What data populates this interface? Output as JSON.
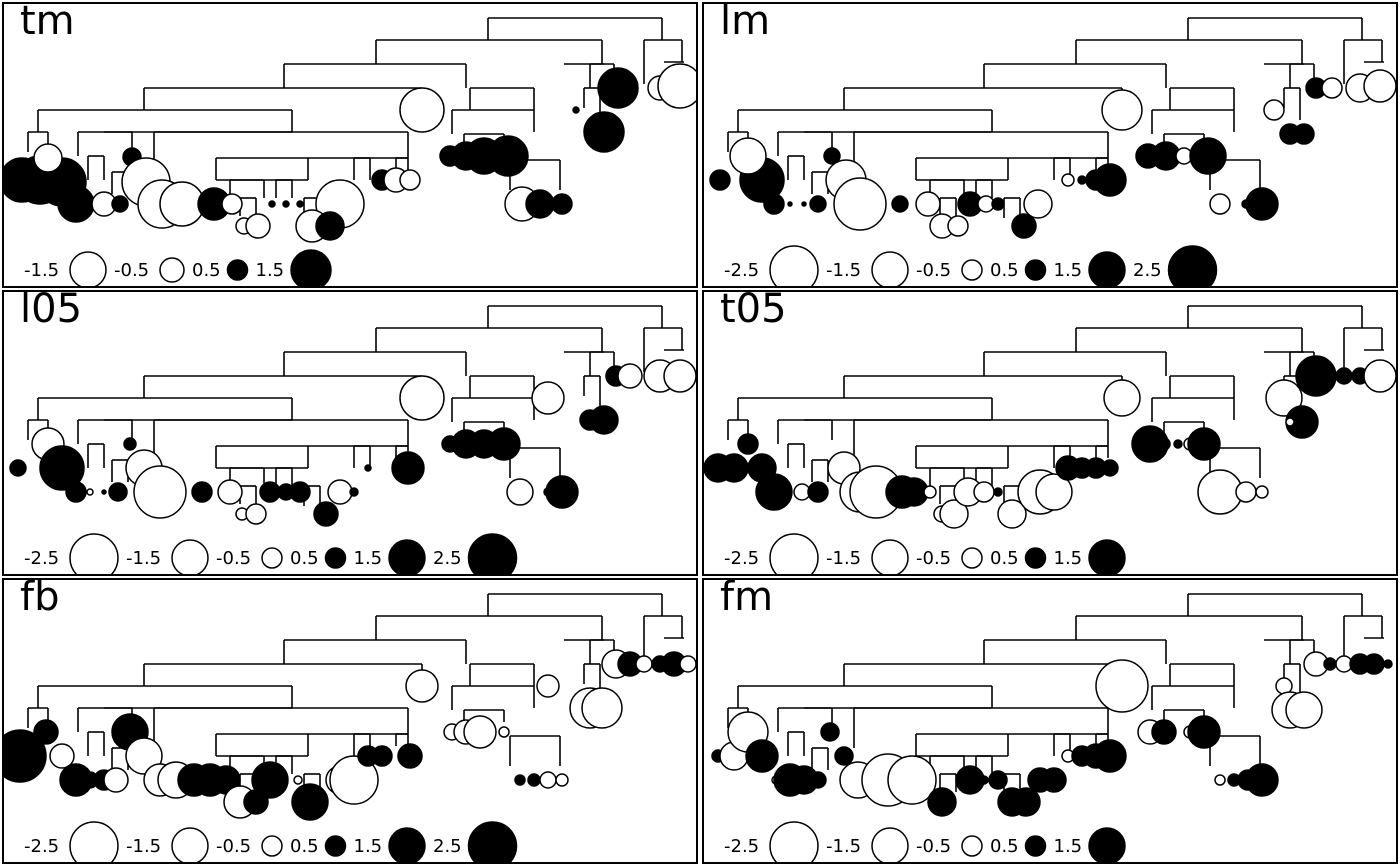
{
  "panels": [
    {
      "title": "tm",
      "legend": [
        "-1.5",
        "-0.5",
        "0.5",
        "1.5"
      ]
    },
    {
      "title": "lm",
      "legend": [
        "-2.5",
        "-1.5",
        "-0.5",
        "0.5",
        "1.5",
        "2.5"
      ]
    },
    {
      "title": "l05",
      "legend": [
        "-2.5",
        "-1.5",
        "-0.5",
        "0.5",
        "1.5",
        "2.5"
      ]
    },
    {
      "title": "t05",
      "legend": [
        "-2.5",
        "-1.5",
        "-0.5",
        "0.5",
        "1.5"
      ]
    },
    {
      "title": "fb",
      "legend": [
        "-2.5",
        "-1.5",
        "-0.5",
        "0.5",
        "1.5",
        "2.5"
      ]
    },
    {
      "title": "fm",
      "legend": [
        "-2.5",
        "-1.5",
        "-0.5",
        "0.5",
        "1.5"
      ]
    }
  ],
  "colors": {
    "negative": "#ffffff",
    "positive": "#000000",
    "stroke": "#000000"
  }
}
